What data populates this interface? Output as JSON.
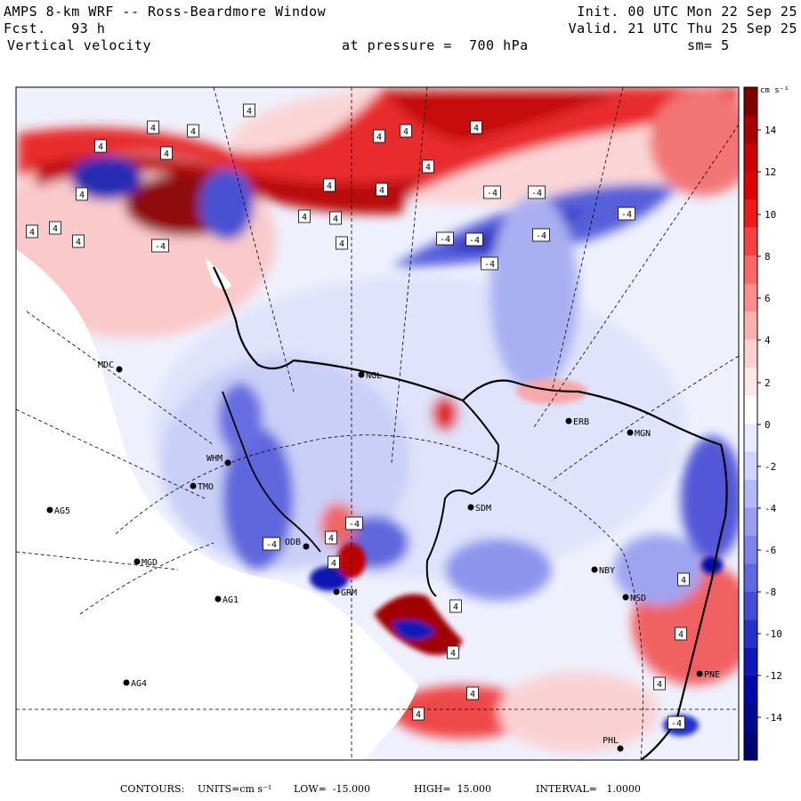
{
  "header": {
    "title": "AMPS 8-km WRF -- Ross-Beardmore Window",
    "init": "Init. 00 UTC Mon 22 Sep 25",
    "fcst": "Fcst.   93 h",
    "valid": "Valid. 21 UTC Thu 25 Sep 25",
    "field": "Vertical velocity",
    "pressure": "at pressure =  700 hPa",
    "smooth": "sm= 5"
  },
  "colorbar": {
    "unit": "cm s⁻¹",
    "ticks": [
      "14",
      "12",
      "10",
      "8",
      "6",
      "4",
      "2",
      "0",
      "-2",
      "-4",
      "-6",
      "-8",
      "-10",
      "-12",
      "-14"
    ],
    "colors": [
      "#7f0000",
      "#a80000",
      "#cc0000",
      "#e00000",
      "#f01818",
      "#f84040",
      "#fc6868",
      "#fd8c8c",
      "#fdb0b0",
      "#fed0d0",
      "#ffe8e8",
      "#ffffff",
      "#e8eaff",
      "#d0d4fc",
      "#b4baf8",
      "#989ff2",
      "#7c84ec",
      "#6068e4",
      "#444cd8",
      "#2830cc",
      "#1018bc",
      "#0008a8",
      "#000890",
      "#000470"
    ]
  },
  "stations": [
    {
      "id": "MDC",
      "label": "MDC"
    },
    {
      "id": "NGL",
      "label": "NGL"
    },
    {
      "id": "ERB",
      "label": "ERB"
    },
    {
      "id": "MGN",
      "label": "MGN"
    },
    {
      "id": "WHM",
      "label": "WHM"
    },
    {
      "id": "TMO",
      "label": "TMO"
    },
    {
      "id": "AG5",
      "label": "AG5"
    },
    {
      "id": "SDM",
      "label": "SDM"
    },
    {
      "id": "MGD",
      "label": "MGD"
    },
    {
      "id": "ODB",
      "label": "ODB"
    },
    {
      "id": "NBY",
      "label": "NBY"
    },
    {
      "id": "GRM",
      "label": "GRM"
    },
    {
      "id": "AG1",
      "label": "AG1"
    },
    {
      "id": "NSD",
      "label": "NSD"
    },
    {
      "id": "AG4",
      "label": "AG4"
    },
    {
      "id": "PNE",
      "label": "PNE"
    },
    {
      "id": "PHL",
      "label": "PHL"
    }
  ],
  "contour_labels": {
    "pos": "4",
    "neg": "-4"
  },
  "footer": {
    "contours": "CONTOURS:",
    "units": "UNITS=cm s⁻¹",
    "low": "LOW=  -15.000",
    "high": "HIGH=  15.000",
    "interval": "INTERVAL=   1.0000"
  }
}
